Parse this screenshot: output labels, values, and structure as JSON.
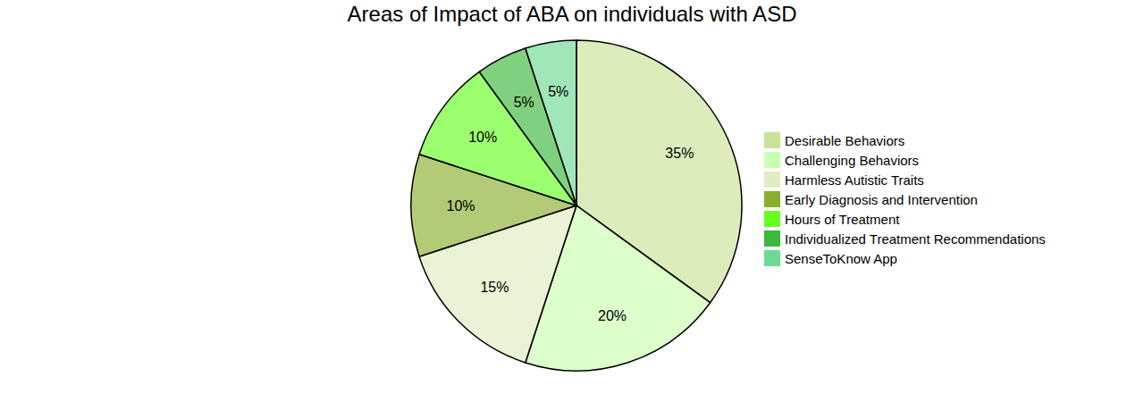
{
  "chart_data": {
    "type": "pie",
    "title": "Areas of Impact of ABA on individuals with ASD",
    "categories": [
      "Desirable Behaviors",
      "Challenging Behaviors",
      "Harmless Autistic Traits",
      "Early Diagnosis and Intervention",
      "Hours of Treatment",
      "Individualized Treatment Recommendations",
      "SenseToKnow App"
    ],
    "values": [
      35,
      20,
      15,
      10,
      10,
      5,
      5
    ],
    "value_labels": [
      "35%",
      "20%",
      "15%",
      "10%",
      "10%",
      "5%",
      "5%"
    ],
    "colors": [
      "#c9e396",
      "#c9ffb0",
      "#e0edc0",
      "#8aae2e",
      "#66ff22",
      "#3cb83a",
      "#6ed994"
    ],
    "data_labels": true,
    "legend": "right"
  }
}
